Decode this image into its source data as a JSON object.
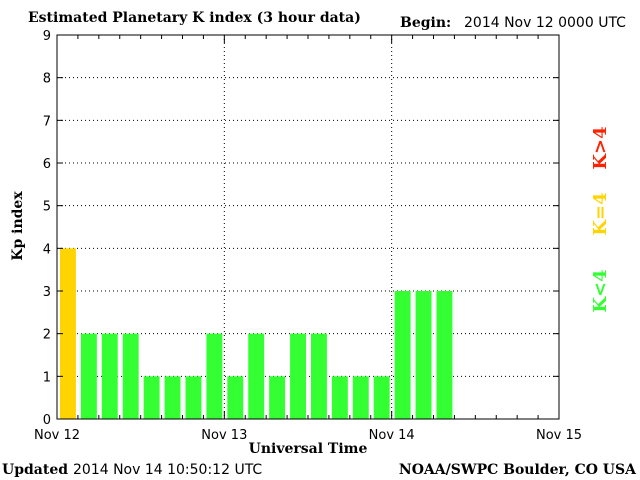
{
  "header": {
    "title": "Estimated Planetary K index (3 hour data)",
    "begin_label": "Begin:",
    "begin_value": "2014 Nov 12 0000 UTC"
  },
  "footer": {
    "updated_label": "Updated",
    "updated_value": "2014 Nov 14 10:50:12 UTC",
    "credit": "NOAA/SWPC Boulder, CO USA"
  },
  "legend": {
    "gt": "K>4",
    "eq": "K=4",
    "lt": "K<4"
  },
  "colors": {
    "gt": "#ff2200",
    "eq": "#ffd400",
    "lt": "#33ff33",
    "axis": "#000000",
    "grid": "#000000"
  },
  "chart_data": {
    "type": "bar",
    "xlabel": "Universal Time",
    "ylabel": "Kp index",
    "ylim": [
      0,
      9
    ],
    "yticks": [
      "0",
      "1",
      "2",
      "3",
      "4",
      "5",
      "6",
      "7",
      "8",
      "9"
    ],
    "xticks": [
      "Nov 12",
      "Nov 13",
      "Nov 14",
      "Nov 15"
    ],
    "grid": true,
    "interval_hours": 3,
    "values": [
      4,
      2,
      2,
      2,
      1,
      1,
      1,
      2,
      1,
      2,
      1,
      2,
      2,
      1,
      1,
      1,
      3,
      3,
      3
    ]
  }
}
